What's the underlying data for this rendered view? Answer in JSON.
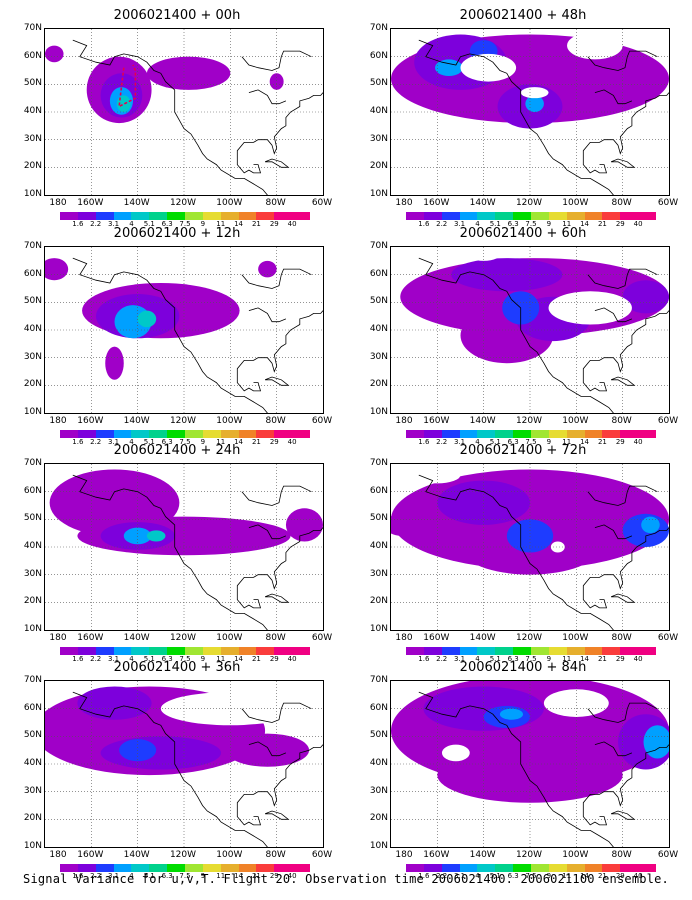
{
  "caption": "Signal Variance for u,v,T. Flight 20. Observation time 2006021400. 2006021100 ensemble.",
  "axes": {
    "lat_labels": [
      "70N",
      "60N",
      "50N",
      "40N",
      "30N",
      "20N",
      "10N"
    ],
    "lon_labels": [
      "180",
      "160W",
      "140W",
      "120W",
      "100W",
      "80W",
      "60W"
    ]
  },
  "colorbar": {
    "levels": [
      "1.6",
      "2.2",
      "3.1",
      "4",
      "5.1",
      "6.3",
      "7.5",
      "9",
      "11",
      "14",
      "21",
      "29",
      "40"
    ],
    "colors": [
      "#a000c8",
      "#7d00dc",
      "#1e3cff",
      "#00a0ff",
      "#00c8c8",
      "#00d28c",
      "#00dc00",
      "#a0e632",
      "#e6dc32",
      "#e6af2d",
      "#f08228",
      "#fa3c3c",
      "#f00082"
    ]
  },
  "panels": [
    {
      "title": "2006021400 + 00h",
      "col": 0,
      "row": 0
    },
    {
      "title": "2006021400 + 48h",
      "col": 1,
      "row": 0
    },
    {
      "title": "2006021400 + 12h",
      "col": 0,
      "row": 1
    },
    {
      "title": "2006021400 + 60h",
      "col": 1,
      "row": 1
    },
    {
      "title": "2006021400 + 24h",
      "col": 0,
      "row": 2
    },
    {
      "title": "2006021400 + 72h",
      "col": 1,
      "row": 2
    },
    {
      "title": "2006021400 + 36h",
      "col": 0,
      "row": 3
    },
    {
      "title": "2006021400 + 84h",
      "col": 1,
      "row": 3
    }
  ]
}
